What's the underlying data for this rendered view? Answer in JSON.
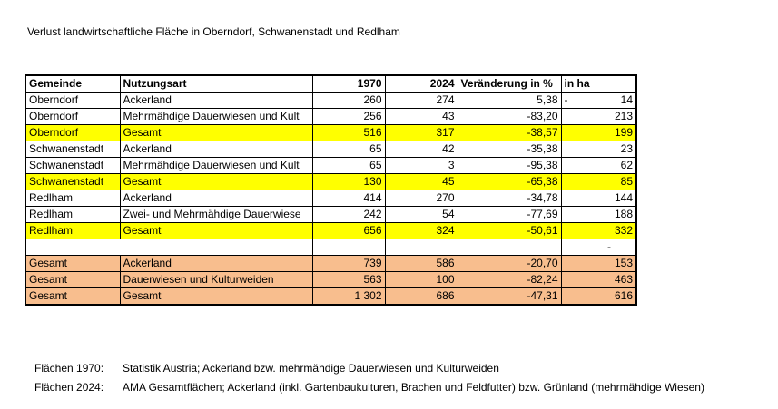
{
  "title": "Verlust landwirtschaftliche Fläche in Oberndorf, Schwanenstadt und Redlham",
  "colors": {
    "highlight_yellow": "#FFFF00",
    "highlight_orange": "#F8BE8E",
    "border": "#000000",
    "background": "#FFFFFF"
  },
  "table": {
    "columns": [
      "Gemeinde",
      "Nutzungsart",
      "1970",
      "2024",
      "Veränderung in %",
      "in ha"
    ],
    "rows": [
      {
        "gemeinde": "Oberndorf",
        "nutzungsart": "Ackerland",
        "y1970": "260",
        "y2024": "274",
        "veraenderung": "5,38",
        "in_ha_prefix": "-",
        "in_ha": "14",
        "bg": "white",
        "merge_first": false
      },
      {
        "gemeinde": "Oberndorf",
        "nutzungsart": "Mehrmähdige Dauerwiesen und Kult",
        "y1970": "256",
        "y2024": "43",
        "veraenderung": "-83,20",
        "in_ha_prefix": "",
        "in_ha": "213",
        "bg": "white",
        "merge_first": false
      },
      {
        "gemeinde": "Oberndorf",
        "nutzungsart": "Gesamt",
        "y1970": "516",
        "y2024": "317",
        "veraenderung": "-38,57",
        "in_ha_prefix": "",
        "in_ha": "199",
        "bg": "yellow",
        "merge_first": false
      },
      {
        "gemeinde": "Schwanenstadt",
        "nutzungsart": "Ackerland",
        "y1970": "65",
        "y2024": "42",
        "veraenderung": "-35,38",
        "in_ha_prefix": "",
        "in_ha": "23",
        "bg": "white",
        "merge_first": false
      },
      {
        "gemeinde": "Schwanenstadt",
        "nutzungsart": "Mehrmähdige Dauerwiesen und Kult",
        "y1970": "65",
        "y2024": "3",
        "veraenderung": "-95,38",
        "in_ha_prefix": "",
        "in_ha": "62",
        "bg": "white",
        "merge_first": false
      },
      {
        "gemeinde": "Schwanenstadt",
        "nutzungsart": "Gesamt",
        "y1970": "130",
        "y2024": "45",
        "veraenderung": "-65,38",
        "in_ha_prefix": "",
        "in_ha": "85",
        "bg": "yellow",
        "merge_first": false
      },
      {
        "gemeinde": "Redlham",
        "nutzungsart": "Ackerland",
        "y1970": "414",
        "y2024": "270",
        "veraenderung": "-34,78",
        "in_ha_prefix": "",
        "in_ha": "144",
        "bg": "white",
        "merge_first": false
      },
      {
        "gemeinde": "Redlham",
        "nutzungsart": "Zwei- und Mehrmähdige Dauerwiese",
        "y1970": "242",
        "y2024": "54",
        "veraenderung": "-77,69",
        "in_ha_prefix": "",
        "in_ha": "188",
        "bg": "white",
        "merge_first": false
      },
      {
        "gemeinde": "Redlham",
        "nutzungsart": "Gesamt",
        "y1970": "656",
        "y2024": "324",
        "veraenderung": "-50,61",
        "in_ha_prefix": "",
        "in_ha": "332",
        "bg": "yellow",
        "merge_first": false
      },
      {
        "gemeinde": "",
        "nutzungsart": "",
        "y1970": "",
        "y2024": "",
        "veraenderung": "",
        "in_ha_prefix": "",
        "in_ha": "-",
        "bg": "white",
        "merge_first": true,
        "zero_dash": true
      },
      {
        "gemeinde": "Gesamt",
        "nutzungsart": "Ackerland",
        "y1970": "739",
        "y2024": "586",
        "veraenderung": "-20,70",
        "in_ha_prefix": "",
        "in_ha": "153",
        "bg": "orange",
        "merge_first": false
      },
      {
        "gemeinde": "Gesamt",
        "nutzungsart": "Dauerwiesen und Kulturweiden",
        "y1970": "563",
        "y2024": "100",
        "veraenderung": "-82,24",
        "in_ha_prefix": "",
        "in_ha": "463",
        "bg": "orange",
        "merge_first": false
      },
      {
        "gemeinde": "Gesamt",
        "nutzungsart": "Gesamt",
        "y1970": "1 302",
        "y2024": "686",
        "veraenderung": "-47,31",
        "in_ha_prefix": "",
        "in_ha": "616",
        "bg": "orange",
        "merge_first": false
      }
    ]
  },
  "footnotes": [
    {
      "label": "Flächen 1970:",
      "text": "Statistik Austria; Ackerland bzw. mehrmähdige Dauerwiesen und Kulturweiden"
    },
    {
      "label": "Flächen 2024:",
      "text": "AMA Gesamtflächen; Ackerland (inkl. Gartenbaukulturen, Brachen und Feldfutter) bzw. Grünland (mehrmähdige Wiesen)"
    }
  ]
}
